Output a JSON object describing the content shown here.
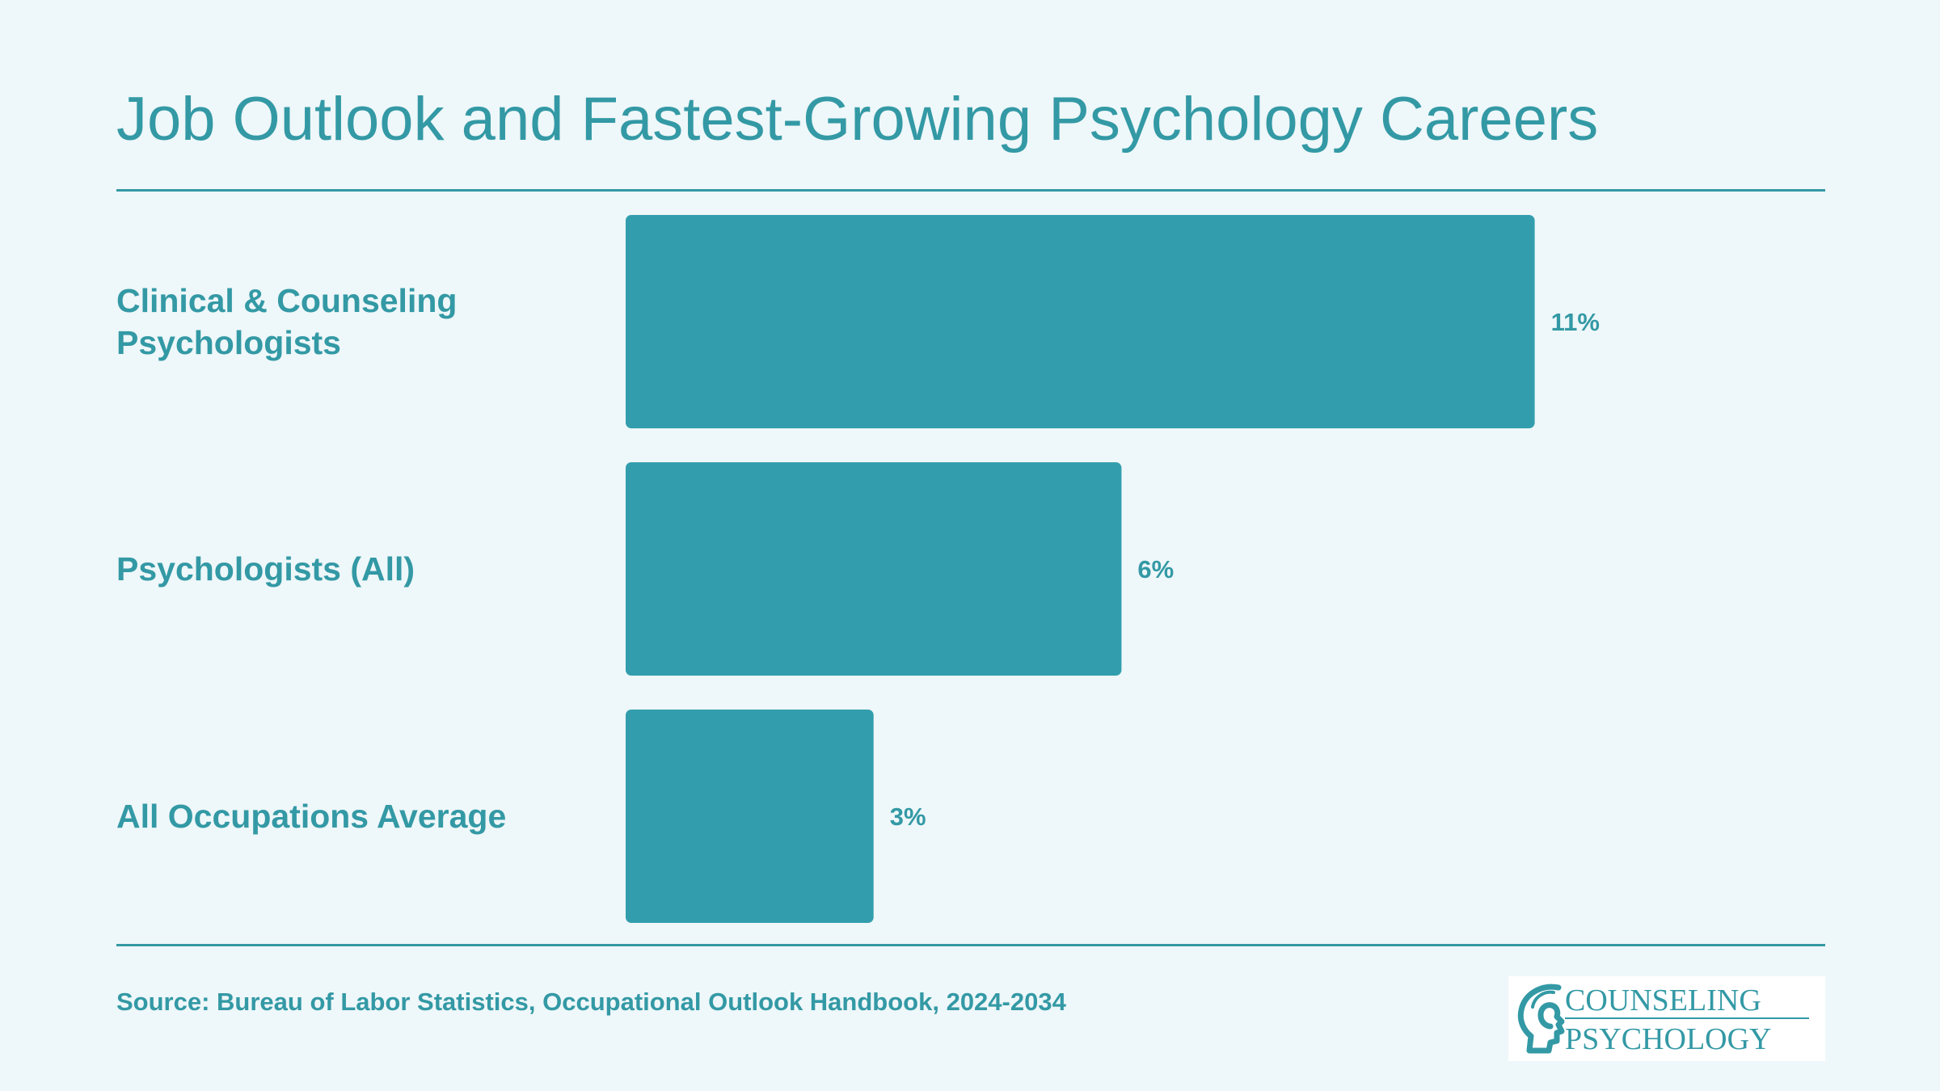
{
  "chart_data": {
    "type": "bar",
    "orientation": "horizontal",
    "title": "Job Outlook and Fastest-Growing Psychology Careers",
    "categories": [
      [
        "Clinical & Counseling",
        "Psychologists"
      ],
      [
        "Psychologists (All)"
      ],
      [
        "All Occupations Average"
      ]
    ],
    "values": [
      11,
      6,
      3
    ],
    "value_labels": [
      "11%",
      "6%",
      "3%"
    ],
    "xlim": [
      0,
      15.2
    ],
    "grid": false,
    "bar_color": "#329ead"
  },
  "source": "Source: Bureau of Labor Statistics, Occupational Outlook Handbook, 2024-2034",
  "logo": {
    "line1": "COUNSELING",
    "line2": "PSYCHOLOGY"
  },
  "colors": {
    "accent": "#3399a5",
    "background": "#eef7f9"
  }
}
